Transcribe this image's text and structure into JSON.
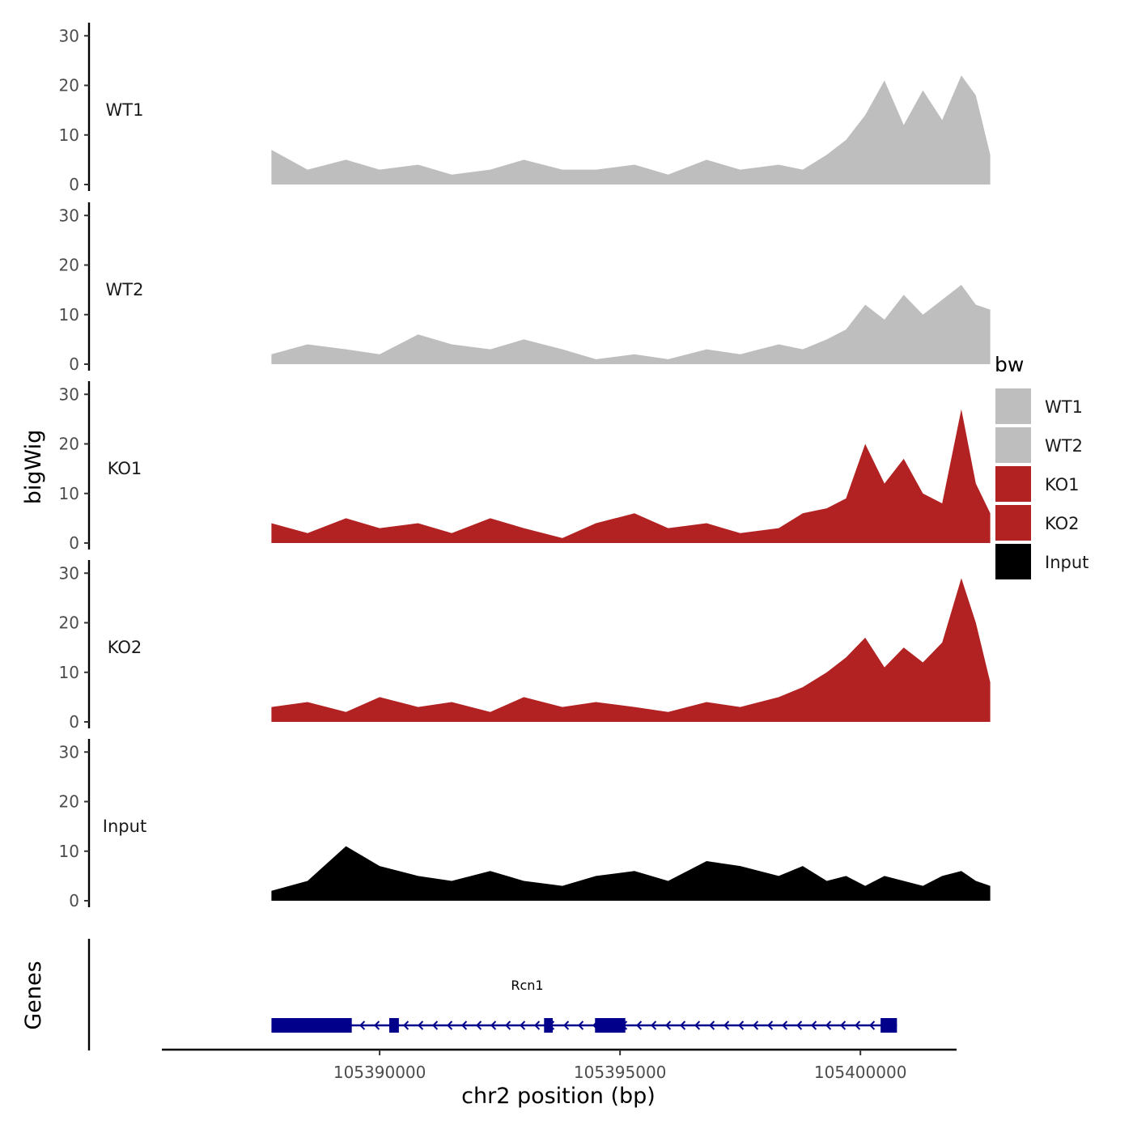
{
  "chart_data": {
    "type": "area",
    "chromosome": "chr2",
    "xlabel": "chr2 position (bp)",
    "ylabel": "bigWig",
    "genes_label": "Genes",
    "xlim": [
      105385470,
      105402000
    ],
    "x_ticks": [
      105390000,
      105395000,
      105400000
    ],
    "x_tick_labels": [
      "105390000",
      "105395000",
      "105400000"
    ],
    "ylim": [
      0,
      32
    ],
    "y_ticks": [
      0,
      10,
      20,
      30
    ],
    "y_tick_labels": [
      "0",
      "10",
      "20",
      "30"
    ],
    "data_range": [
      105387750,
      105402700
    ],
    "legend": {
      "title": "bw",
      "entries": [
        {
          "label": "WT1",
          "color": "#bebebe"
        },
        {
          "label": "WT2",
          "color": "#bebebe"
        },
        {
          "label": "KO1",
          "color": "#b22222"
        },
        {
          "label": "KO2",
          "color": "#b22222"
        },
        {
          "label": "Input",
          "color": "#000000"
        }
      ]
    },
    "tracks": [
      {
        "name": "WT1",
        "color": "#bebebe",
        "x": [
          105387750,
          105388500,
          105389300,
          105390000,
          105390800,
          105391500,
          105392300,
          105393000,
          105393800,
          105394500,
          105395300,
          105396000,
          105396800,
          105397500,
          105398300,
          105398800,
          105399300,
          105399700,
          105400100,
          105400500,
          105400900,
          105401300,
          105401700,
          105402100,
          105402400,
          105402700
        ],
        "values": [
          7,
          3,
          5,
          3,
          4,
          2,
          3,
          5,
          3,
          3,
          4,
          2,
          5,
          3,
          4,
          3,
          6,
          9,
          14,
          21,
          12,
          19,
          13,
          22,
          18,
          6
        ]
      },
      {
        "name": "WT2",
        "color": "#bebebe",
        "x": [
          105387750,
          105388500,
          105389300,
          105390000,
          105390800,
          105391500,
          105392300,
          105393000,
          105393800,
          105394500,
          105395300,
          105396000,
          105396800,
          105397500,
          105398300,
          105398800,
          105399300,
          105399700,
          105400100,
          105400500,
          105400900,
          105401300,
          105401700,
          105402100,
          105402400,
          105402700
        ],
        "values": [
          2,
          4,
          3,
          2,
          6,
          4,
          3,
          5,
          3,
          1,
          2,
          1,
          3,
          2,
          4,
          3,
          5,
          7,
          12,
          9,
          14,
          10,
          13,
          16,
          12,
          11
        ]
      },
      {
        "name": "KO1",
        "color": "#b22222",
        "x": [
          105387750,
          105388500,
          105389300,
          105390000,
          105390800,
          105391500,
          105392300,
          105393000,
          105393800,
          105394500,
          105395300,
          105396000,
          105396800,
          105397500,
          105398300,
          105398800,
          105399300,
          105399700,
          105400100,
          105400500,
          105400900,
          105401300,
          105401700,
          105402100,
          105402400,
          105402700
        ],
        "values": [
          4,
          2,
          5,
          3,
          4,
          2,
          5,
          3,
          1,
          4,
          6,
          3,
          4,
          2,
          3,
          6,
          7,
          9,
          20,
          12,
          17,
          10,
          8,
          27,
          12,
          6
        ]
      },
      {
        "name": "KO2",
        "color": "#b22222",
        "x": [
          105387750,
          105388500,
          105389300,
          105390000,
          105390800,
          105391500,
          105392300,
          105393000,
          105393800,
          105394500,
          105395300,
          105396000,
          105396800,
          105397500,
          105398300,
          105398800,
          105399300,
          105399700,
          105400100,
          105400500,
          105400900,
          105401300,
          105401700,
          105402100,
          105402400,
          105402700
        ],
        "values": [
          3,
          4,
          2,
          5,
          3,
          4,
          2,
          5,
          3,
          4,
          3,
          2,
          4,
          3,
          5,
          7,
          10,
          13,
          17,
          11,
          15,
          12,
          16,
          29,
          20,
          8
        ]
      },
      {
        "name": "Input",
        "color": "#000000",
        "x": [
          105387750,
          105388500,
          105389300,
          105390000,
          105390800,
          105391500,
          105392300,
          105393000,
          105393800,
          105394500,
          105395300,
          105396000,
          105396800,
          105397500,
          105398300,
          105398800,
          105399300,
          105399700,
          105400100,
          105400500,
          105400900,
          105401300,
          105401700,
          105402100,
          105402400,
          105402700
        ],
        "values": [
          2,
          4,
          11,
          7,
          5,
          4,
          6,
          4,
          3,
          5,
          6,
          4,
          8,
          7,
          5,
          7,
          4,
          5,
          3,
          5,
          4,
          3,
          5,
          6,
          4,
          3
        ]
      }
    ],
    "gene": {
      "name": "Rcn1",
      "color": "#00008b",
      "start": 105387750,
      "end": 105400760,
      "strand": "-",
      "exons": [
        [
          105387750,
          105389420
        ],
        [
          105390200,
          105390400
        ],
        [
          105393420,
          105393600
        ],
        [
          105394480,
          105395110
        ],
        [
          105400420,
          105400760
        ]
      ]
    }
  }
}
